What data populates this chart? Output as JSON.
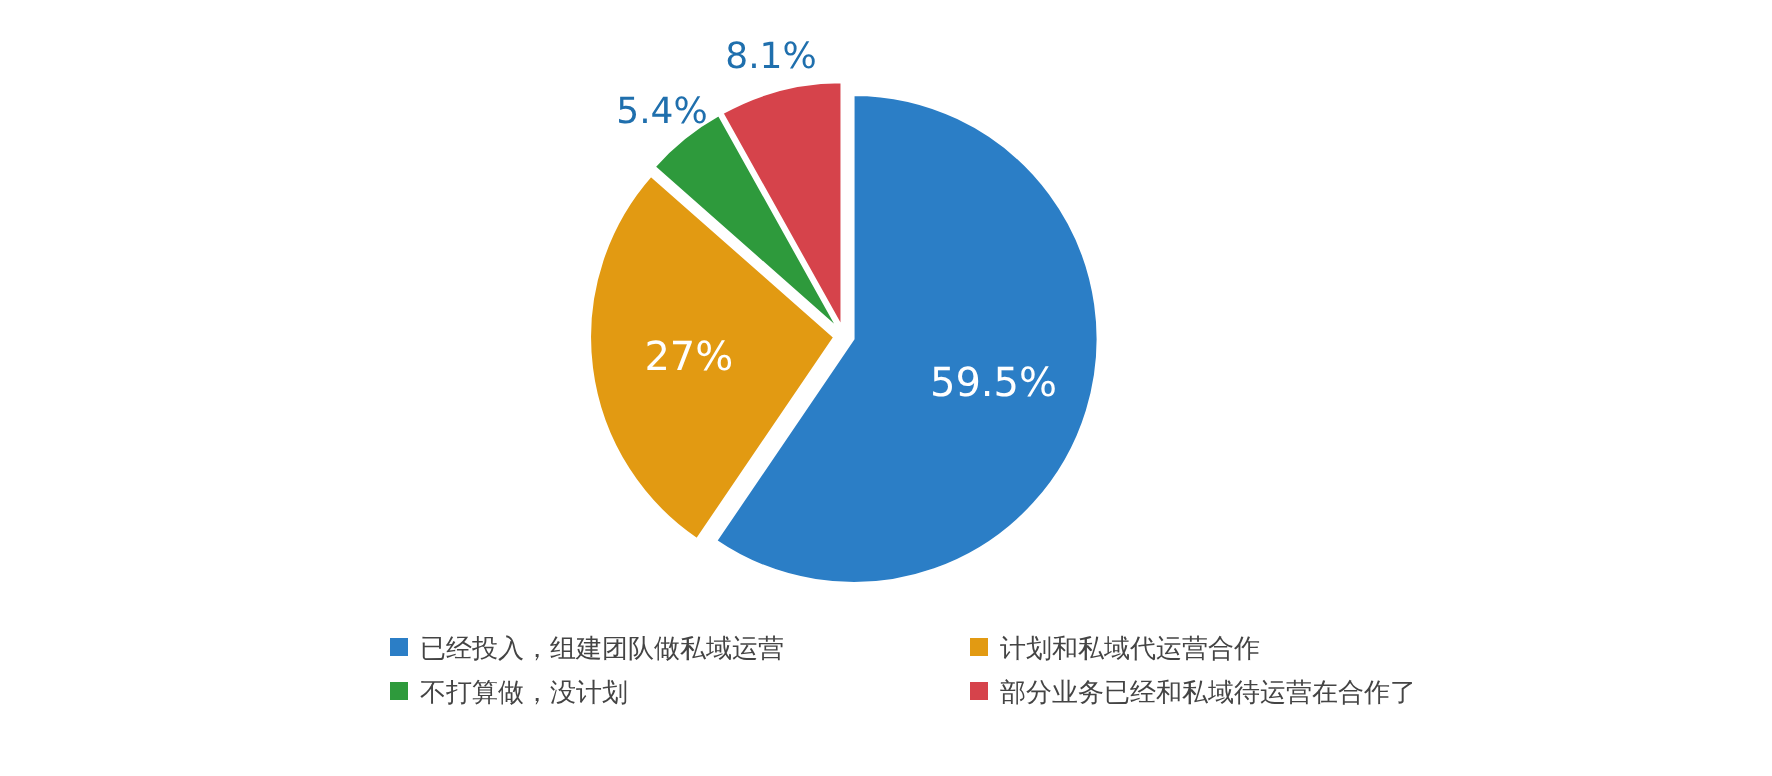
{
  "chart_data": {
    "type": "pie",
    "categories": [
      "已经投入，组建团队做私域运营",
      "计划和私域代运营合作",
      "不打算做，没计划",
      "部分业务已经和私域待运营在合作了"
    ],
    "values": [
      59.5,
      27,
      5.4,
      8.1
    ],
    "colors": [
      "#2b7ec6",
      "#e29a12",
      "#2e9a3c",
      "#d6434b"
    ],
    "value_labels": [
      "59.5%",
      "27%",
      "5.4%",
      "8.1%"
    ],
    "legend": "bottom"
  }
}
